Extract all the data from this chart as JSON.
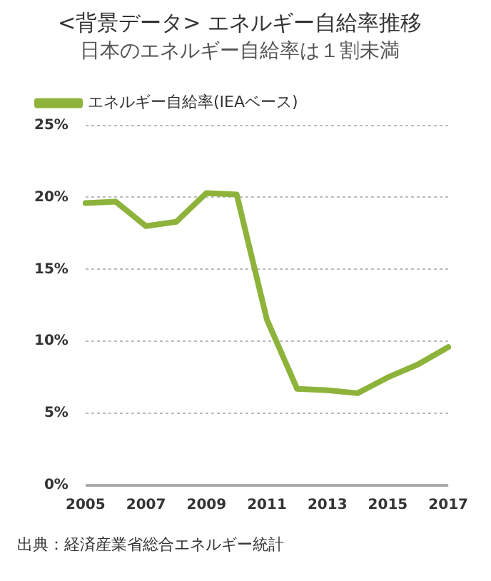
{
  "chart_data": {
    "type": "line",
    "title": "<背景データ> エネルギー自給率推移",
    "subtitle": "日本のエネルギー自給率は１割未満",
    "categories": [
      "2005",
      null,
      "2007",
      null,
      "2009",
      null,
      "2011",
      null,
      "2013",
      null,
      "2015",
      null,
      "2017"
    ],
    "series": [
      {
        "name": "エネルギー自給率(IEAベース)",
        "color": "#8db33a",
        "values": [
          19.6,
          19.7,
          18.0,
          18.3,
          20.3,
          20.2,
          11.5,
          6.7,
          6.6,
          6.4,
          7.5,
          8.4,
          9.6
        ]
      }
    ],
    "ylim": [
      0,
      25
    ],
    "yticks": [
      {
        "value": 0,
        "label": "0%"
      },
      {
        "value": 5,
        "label": "5%"
      },
      {
        "value": 10,
        "label": "10%"
      },
      {
        "value": 15,
        "label": "15%"
      },
      {
        "value": 20,
        "label": "20%"
      },
      {
        "value": 25,
        "label": "25%"
      }
    ],
    "grid": "y",
    "legend": "top left",
    "marker": "none",
    "line_style": "solid",
    "annotations": [
      "出典：経済産業省総合エネルギー統計"
    ]
  }
}
